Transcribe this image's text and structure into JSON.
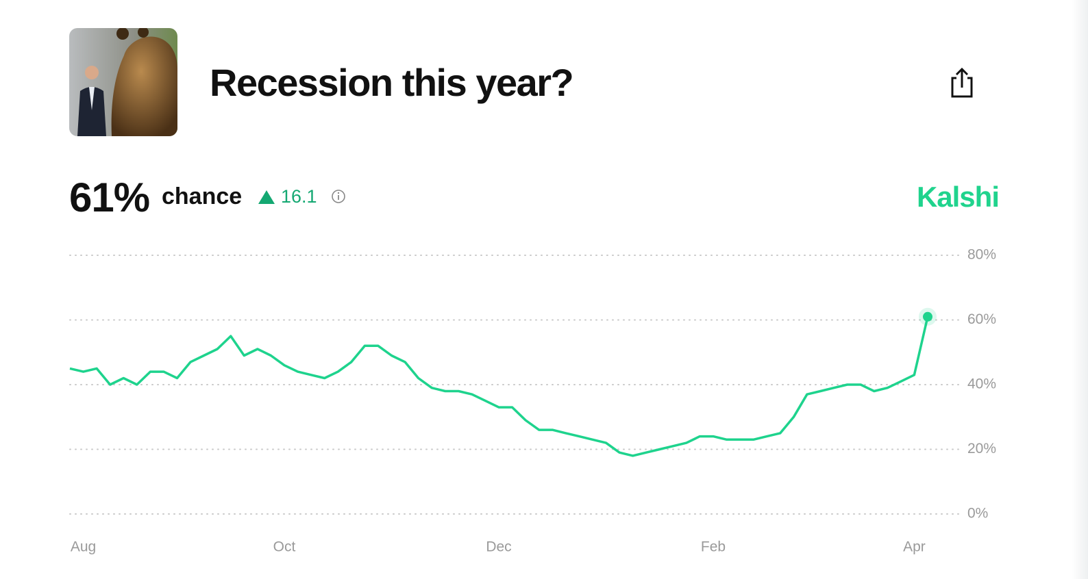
{
  "header": {
    "title": "Recession this year?",
    "probability": "61%",
    "probability_label": "chance",
    "change": 16.1,
    "brand": "Kalshi"
  },
  "chart_data": {
    "type": "line",
    "categories": [
      null,
      "Aug",
      null,
      null,
      null,
      null,
      null,
      null,
      null,
      null,
      null,
      null,
      null,
      null,
      null,
      null,
      "Oct",
      null,
      null,
      null,
      null,
      null,
      null,
      null,
      null,
      null,
      null,
      null,
      null,
      null,
      null,
      null,
      "Dec",
      null,
      null,
      null,
      null,
      null,
      null,
      null,
      null,
      null,
      null,
      null,
      null,
      null,
      null,
      null,
      "Feb",
      null,
      null,
      null,
      null,
      null,
      null,
      null,
      null,
      null,
      null,
      null,
      null,
      null,
      null,
      "Apr",
      null
    ],
    "series": [
      {
        "name": "Recession this year?",
        "color": "#1ed38d",
        "values": [
          45,
          44,
          45,
          40,
          42,
          40,
          44,
          44,
          42,
          47,
          49,
          51,
          55,
          49,
          51,
          49,
          46,
          44,
          43,
          42,
          44,
          47,
          52,
          52,
          49,
          47,
          42,
          39,
          38,
          38,
          37,
          35,
          33,
          33,
          29,
          26,
          26,
          25,
          24,
          23,
          22,
          19,
          18,
          19,
          20,
          21,
          22,
          24,
          24,
          23,
          23,
          23,
          24,
          25,
          30,
          37,
          38,
          39,
          40,
          40,
          38,
          39,
          41,
          43,
          61
        ]
      }
    ],
    "ylim": [
      0,
      80
    ],
    "yticks": [
      {
        "value": 0,
        "label": "0%"
      },
      {
        "value": 20,
        "label": "20%"
      },
      {
        "value": 40,
        "label": "40%"
      },
      {
        "value": 60,
        "label": "60%"
      },
      {
        "value": 80,
        "label": "80%"
      }
    ],
    "grid": true
  }
}
